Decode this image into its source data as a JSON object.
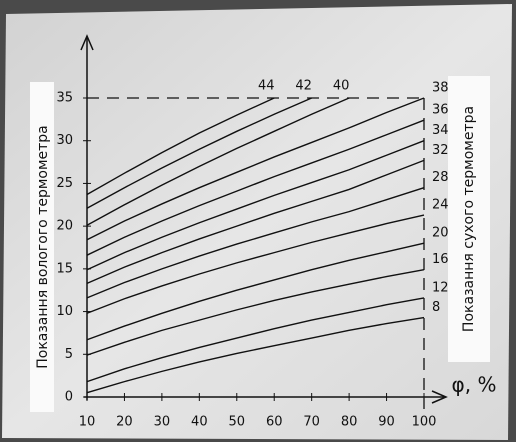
{
  "chart_data": {
    "type": "line",
    "y_label": "Показання вологого термометра",
    "y2_label": "Показання сухого термометра",
    "x_label": "φ, %",
    "x": [
      10,
      20,
      30,
      40,
      50,
      60,
      70,
      80,
      90,
      100
    ],
    "xlim": [
      10,
      100
    ],
    "xticks": [
      10,
      20,
      30,
      40,
      50,
      60,
      70,
      80,
      90,
      100
    ],
    "ylim": [
      0,
      35
    ],
    "yticks": [
      0,
      5,
      10,
      15,
      20,
      25,
      30,
      35
    ],
    "color": "#111111",
    "series": [
      {
        "name": "8",
        "values": [
          0.5,
          1.8,
          3,
          4.1,
          5.1,
          6,
          6.9,
          7.8,
          8.6,
          9.3
        ]
      },
      {
        "name": "12",
        "values": [
          1.8,
          3.3,
          4.6,
          5.8,
          6.9,
          8,
          9,
          9.9,
          10.8,
          11.6
        ]
      },
      {
        "name": "16",
        "values": [
          4.9,
          6.4,
          7.8,
          9,
          10.2,
          11.3,
          12.3,
          13.2,
          14.1,
          14.9
        ]
      },
      {
        "name": "20",
        "values": [
          6.7,
          8.3,
          9.8,
          11.2,
          12.5,
          13.7,
          14.9,
          16,
          17,
          18
        ]
      },
      {
        "name": "24",
        "values": [
          9.8,
          11.5,
          13,
          14.4,
          15.7,
          16.9,
          18.1,
          19.2,
          20.3,
          21.3
        ]
      },
      {
        "name": "28",
        "values": [
          11.6,
          13.4,
          15,
          16.5,
          17.9,
          19.2,
          20.5,
          21.7,
          23.1,
          24.5
        ]
      },
      {
        "name": "32",
        "values": [
          13.3,
          15.2,
          16.9,
          18.5,
          20,
          21.5,
          22.9,
          24.3,
          26,
          27.7
        ]
      },
      {
        "name": "34",
        "values": [
          14.9,
          16.9,
          18.7,
          20.4,
          22,
          23.6,
          25.1,
          26.6,
          28.3,
          30
        ]
      },
      {
        "name": "36",
        "values": [
          16.6,
          18.7,
          20.6,
          22.4,
          24.1,
          25.8,
          27.4,
          29,
          30.7,
          32.4
        ]
      },
      {
        "name": "38",
        "values": [
          18.4,
          20.6,
          22.6,
          24.5,
          26.3,
          28.1,
          29.8,
          31.5,
          33.3,
          35
        ]
      },
      {
        "name": "40",
        "values": [
          20.1,
          22.5,
          24.8,
          27,
          29.1,
          31.1,
          33.1,
          35,
          null,
          null
        ]
      },
      {
        "name": "42",
        "values": [
          22.1,
          24.5,
          26.8,
          29,
          31.1,
          33.1,
          35,
          null,
          null,
          null
        ]
      },
      {
        "name": "44",
        "values": [
          23.7,
          26.2,
          28.6,
          30.9,
          33,
          35,
          null,
          null,
          null,
          null
        ]
      }
    ]
  }
}
